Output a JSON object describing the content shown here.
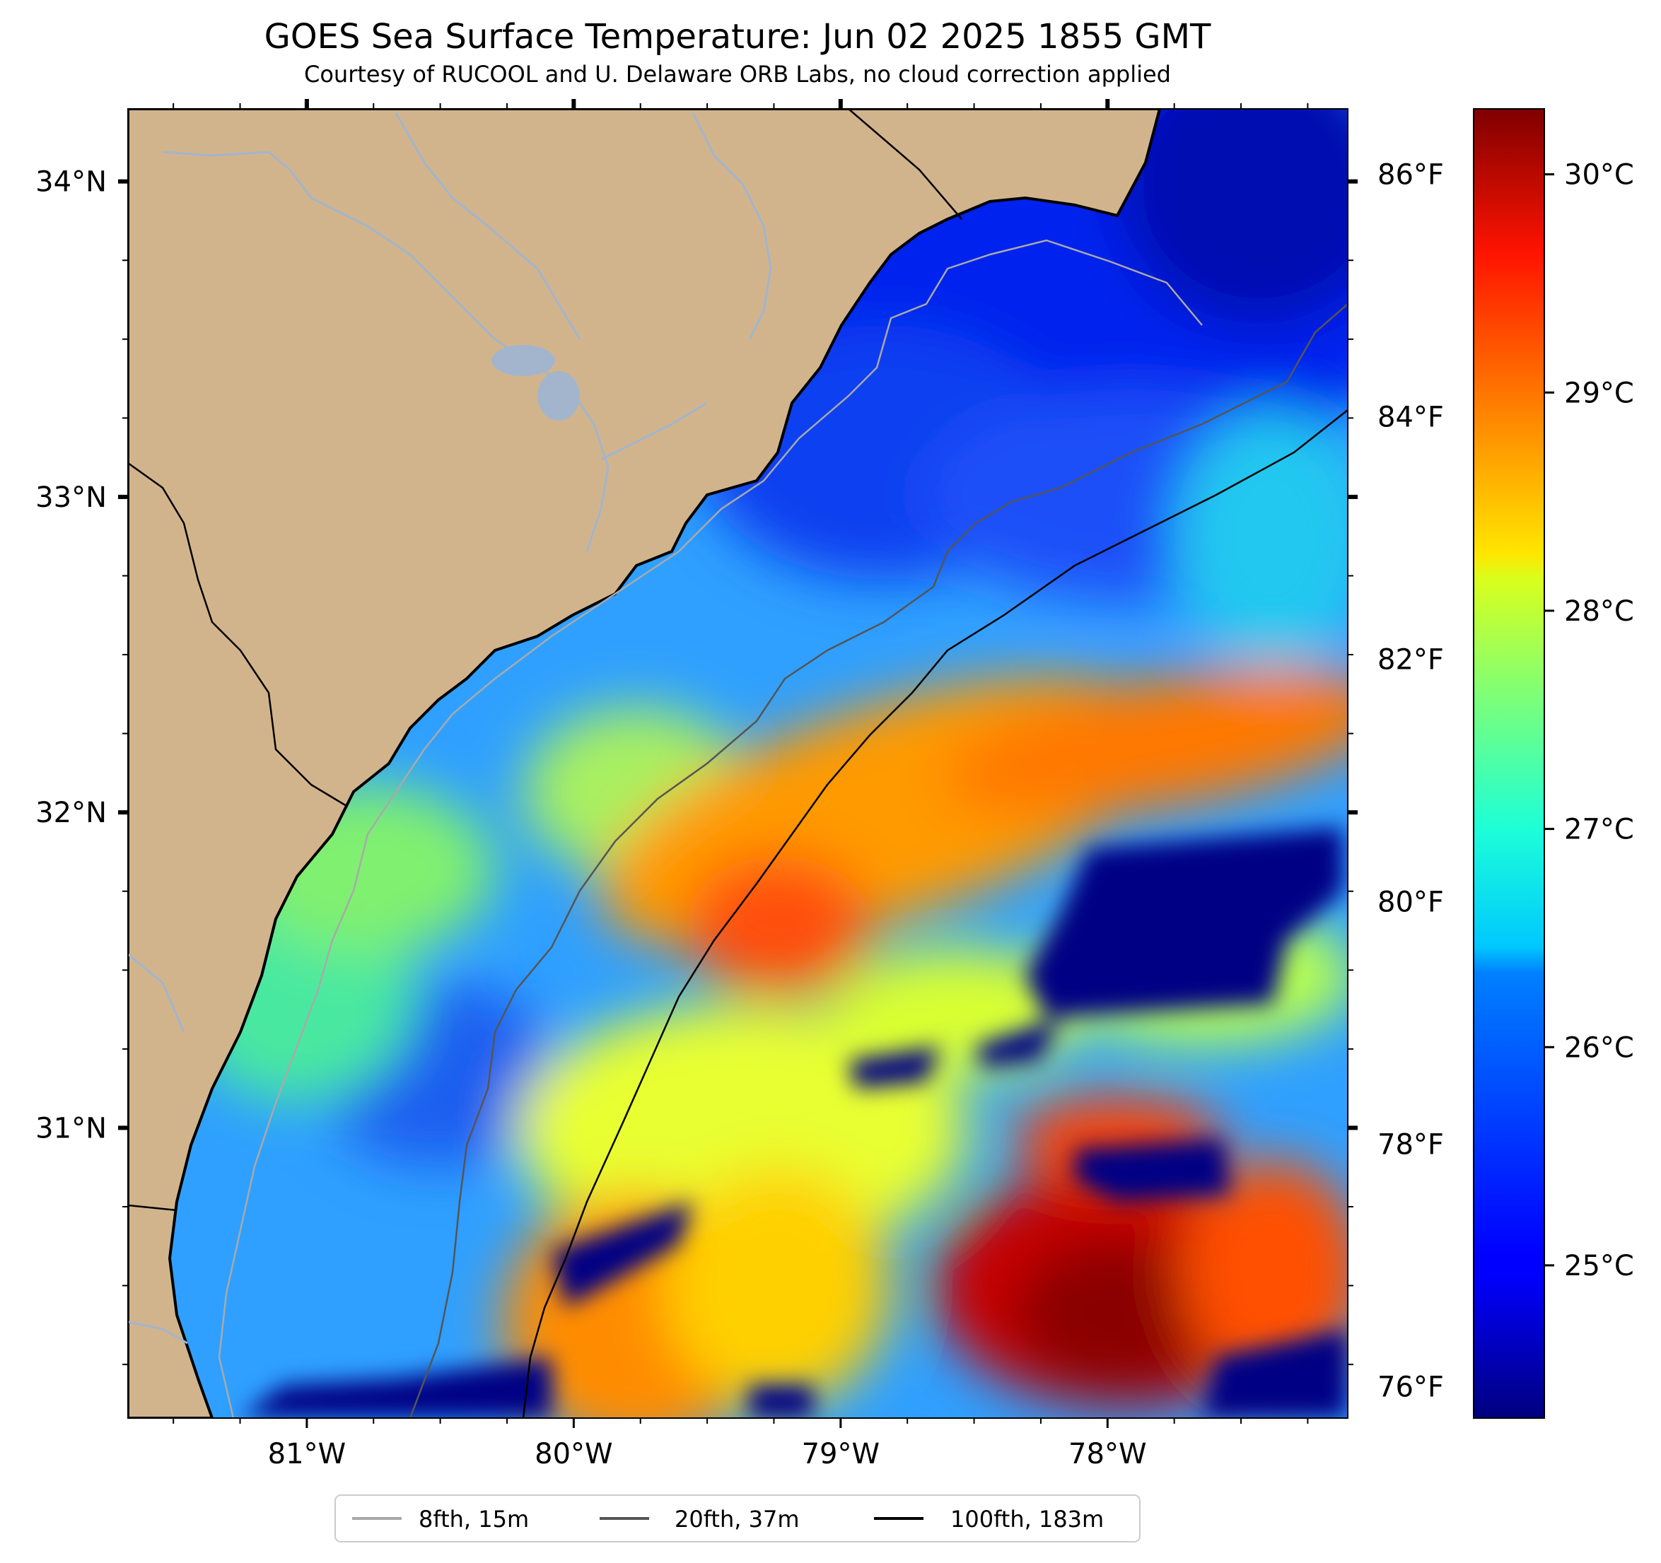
{
  "title": "GOES Sea Surface Temperature: Jun 02 2025 1855 GMT",
  "subtitle": "Courtesy of RUCOOL and U. Delaware ORB Labs, no cloud correction applied",
  "map": {
    "lon_range": [
      -81.67,
      -77.1
    ],
    "lat_range": [
      30.08,
      34.23
    ],
    "land_color": "#d2b48c",
    "coast_color": "#000000",
    "river_color": "#a2b5cd",
    "lon_ticks": [
      {
        "value": -81,
        "label": "81°W"
      },
      {
        "value": -80,
        "label": "80°W"
      },
      {
        "value": -79,
        "label": "79°W"
      },
      {
        "value": -78,
        "label": "78°W"
      }
    ],
    "lat_ticks": [
      {
        "value": 34,
        "label": "34°N"
      },
      {
        "value": 33,
        "label": "33°N"
      },
      {
        "value": 32,
        "label": "32°N"
      },
      {
        "value": 31,
        "label": "31°N"
      }
    ],
    "fahrenheit_ticks": [
      {
        "value": 86,
        "label": "86°F"
      },
      {
        "value": 84,
        "label": "84°F"
      },
      {
        "value": 82,
        "label": "82°F"
      },
      {
        "value": 80,
        "label": "80°F"
      },
      {
        "value": 78,
        "label": "78°F"
      },
      {
        "value": 76,
        "label": "76°F"
      }
    ]
  },
  "colorbar": {
    "colormap": "jet",
    "range_c": [
      24.3,
      30.3
    ],
    "ticks": [
      {
        "value": 30,
        "label": "30°C"
      },
      {
        "value": 29,
        "label": "29°C"
      },
      {
        "value": 28,
        "label": "28°C"
      },
      {
        "value": 27,
        "label": "27°C"
      },
      {
        "value": 26,
        "label": "26°C"
      },
      {
        "value": 25,
        "label": "25°C"
      }
    ]
  },
  "legend": [
    {
      "label": "8fth, 15m",
      "color": "#a9a9a9"
    },
    {
      "label": "20fth, 37m",
      "color": "#555555"
    },
    {
      "label": "100fth, 183m",
      "color": "#000000"
    }
  ]
}
